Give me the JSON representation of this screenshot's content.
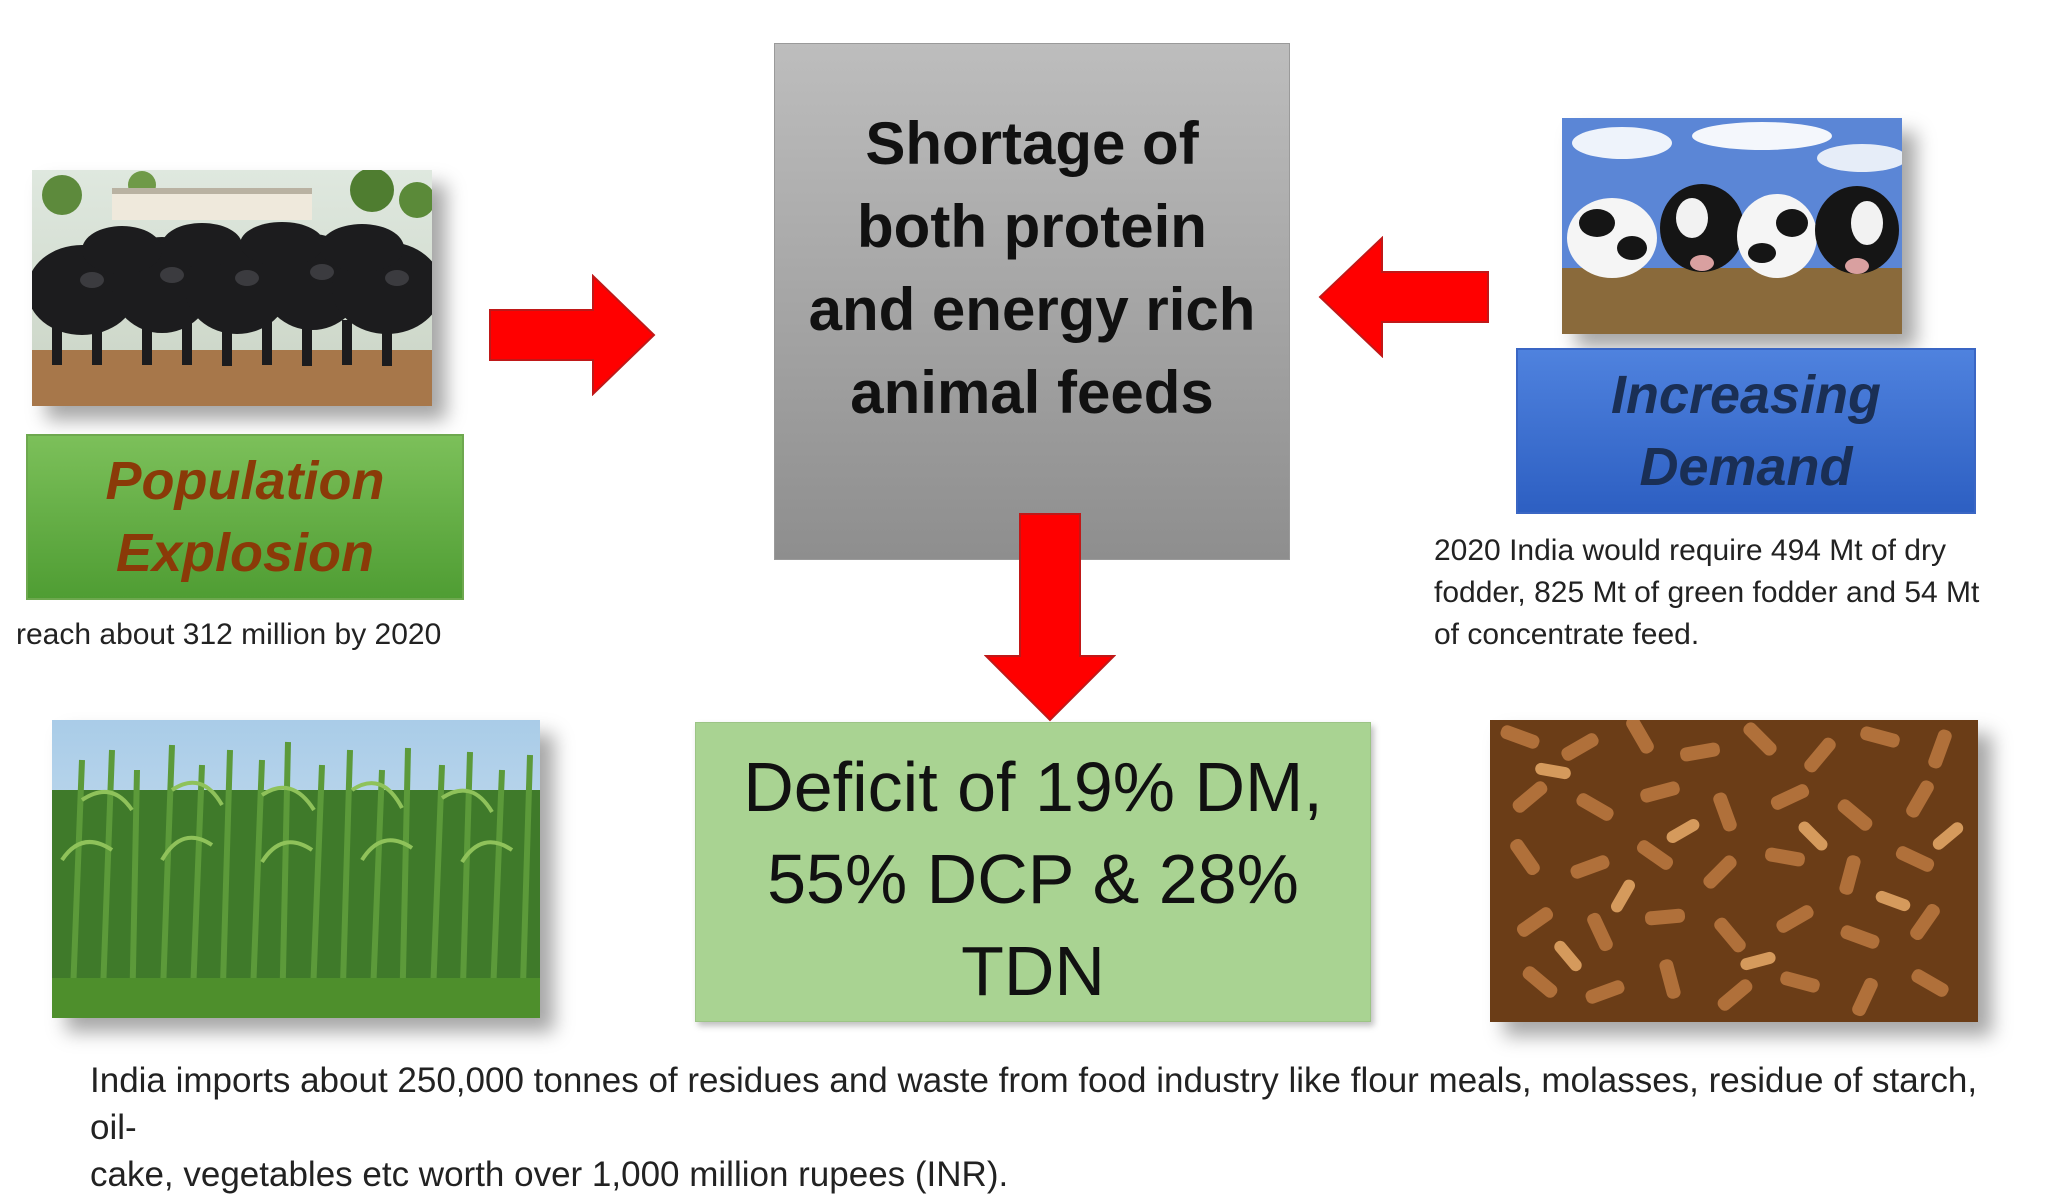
{
  "center": {
    "lines": [
      "Shortage of",
      "both protein",
      "and energy rich",
      "animal feeds"
    ]
  },
  "left": {
    "label_lines": [
      "Population",
      "Explosion"
    ],
    "caption": "reach about 312 million by 2020"
  },
  "right": {
    "label_lines": [
      "Increasing",
      "Demand"
    ],
    "caption_lines": [
      "2020 India would require 494 Mt of dry",
      "fodder, 825 Mt of green fodder and 54 Mt",
      "of concentrate feed."
    ]
  },
  "deficit": {
    "lines": [
      "Deficit of 19% DM,",
      "55% DCP & 28% TDN"
    ]
  },
  "bottom": {
    "caption_lines": [
      "India imports about 250,000 tonnes of residues and waste from food industry like flour meals, molasses, residue of starch, oil-",
      "cake, vegetables etc worth over 1,000 million rupees (INR)."
    ]
  },
  "colors": {
    "arrow": "#ff0000",
    "arrow_stroke": "#c01818"
  },
  "images": {
    "buffalo": "buffalo-herd-photo",
    "cows": "holstein-cows-photo",
    "fodder": "fodder-crop-photo",
    "pellets": "feed-pellets-photo"
  }
}
